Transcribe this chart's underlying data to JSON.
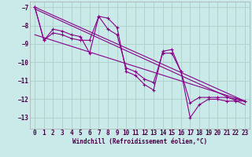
{
  "xlabel": "Windchill (Refroidissement éolien,°C)",
  "bg_color": "#caeaea",
  "grid_color": "#b0d4cc",
  "line_color": "#880088",
  "xlim": [
    -0.5,
    23.5
  ],
  "ylim": [
    -13.6,
    -6.7
  ],
  "yticks": [
    -13,
    -12,
    -11,
    -10,
    -9,
    -8,
    -7
  ],
  "xticks": [
    0,
    1,
    2,
    3,
    4,
    5,
    6,
    7,
    8,
    9,
    10,
    11,
    12,
    13,
    14,
    15,
    16,
    17,
    18,
    19,
    20,
    21,
    22,
    23
  ],
  "series": [
    {
      "x": [
        0,
        1,
        2,
        3,
        4,
        5,
        6,
        7,
        8,
        9,
        10,
        11,
        12,
        13,
        14,
        15,
        16,
        17,
        18,
        19,
        20,
        21,
        22,
        23
      ],
      "y": [
        -7.0,
        -8.8,
        -8.2,
        -8.3,
        -8.5,
        -8.6,
        -9.5,
        -7.5,
        -7.6,
        -8.1,
        -10.5,
        -10.7,
        -11.2,
        -11.5,
        -9.4,
        -9.3,
        -10.5,
        -12.2,
        -11.9,
        -11.9,
        -11.9,
        -11.9,
        -12.0,
        -12.1
      ],
      "marker": true
    },
    {
      "x": [
        0,
        1,
        2,
        3,
        4,
        5,
        6,
        7,
        8,
        9,
        10,
        11,
        12,
        13,
        14,
        15,
        16,
        17,
        18,
        19,
        20,
        21,
        22,
        23
      ],
      "y": [
        -7.0,
        -8.8,
        -8.4,
        -8.5,
        -8.7,
        -8.8,
        -8.8,
        -7.5,
        -8.2,
        -8.5,
        -10.3,
        -10.5,
        -10.9,
        -11.1,
        -9.5,
        -9.5,
        -10.5,
        -13.0,
        -12.3,
        -12.0,
        -12.0,
        -12.1,
        -12.1,
        -12.1
      ],
      "marker": true
    },
    {
      "x": [
        0,
        23
      ],
      "y": [
        -7.0,
        -12.1
      ],
      "marker": false
    },
    {
      "x": [
        0,
        23
      ],
      "y": [
        -7.1,
        -12.3
      ],
      "marker": false
    },
    {
      "x": [
        0,
        23
      ],
      "y": [
        -8.5,
        -12.1
      ],
      "marker": false
    }
  ]
}
